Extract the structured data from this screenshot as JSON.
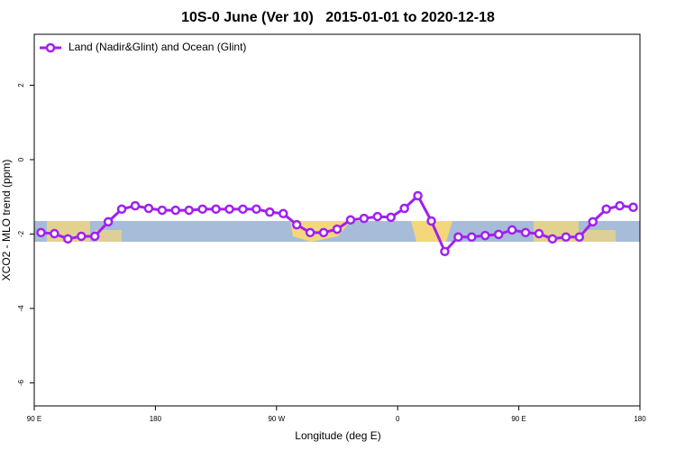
{
  "chart_data": {
    "type": "line",
    "title": "10S-0 June (Ver 10)   2015-01-01 to 2020-12-18",
    "x_label": "Longitude (deg E)",
    "y_label": "XCO2 - MLO trend (ppm)",
    "x": [
      95,
      105,
      115,
      125,
      135,
      145,
      155,
      165,
      175,
      185,
      195,
      205,
      215,
      225,
      235,
      245,
      255,
      265,
      275,
      285,
      295,
      305,
      315,
      325,
      335,
      345,
      355,
      365,
      375,
      385,
      395,
      405,
      415,
      425,
      435,
      445,
      455,
      465,
      475,
      485,
      495,
      505,
      515,
      525,
      535
    ],
    "series": [
      {
        "name": "Land (Nadir&Glint) and Ocean (Glint)",
        "color": "#a020f0",
        "values": [
          -1.96,
          -1.99,
          -2.13,
          -2.06,
          -2.06,
          -1.67,
          -1.33,
          -1.24,
          -1.31,
          -1.36,
          -1.36,
          -1.36,
          -1.33,
          -1.33,
          -1.33,
          -1.33,
          -1.33,
          -1.41,
          -1.45,
          -1.75,
          -1.96,
          -1.96,
          -1.87,
          -1.62,
          -1.58,
          -1.53,
          -1.55,
          -1.31,
          -0.97,
          -1.65,
          -2.47,
          -2.08,
          -2.08,
          -2.04,
          -2.01,
          -1.89,
          -1.96,
          -1.99,
          -2.13,
          -2.08,
          -2.08,
          -1.67,
          -1.33,
          -1.24,
          -1.28
        ]
      }
    ],
    "xlim": [
      90,
      540
    ],
    "xticks": [
      {
        "value": 90,
        "label": "90 E"
      },
      180,
      {
        "value": 270,
        "label": "90 W"
      },
      {
        "value": 360,
        "label": "0"
      },
      {
        "value": 450,
        "label": "90 E"
      },
      {
        "value": 540,
        "label": "180"
      }
    ],
    "ylim": [
      -6.62,
      3.37
    ],
    "yticks": [
      2,
      0,
      -2,
      -4,
      -6
    ],
    "legend": "top-left"
  }
}
